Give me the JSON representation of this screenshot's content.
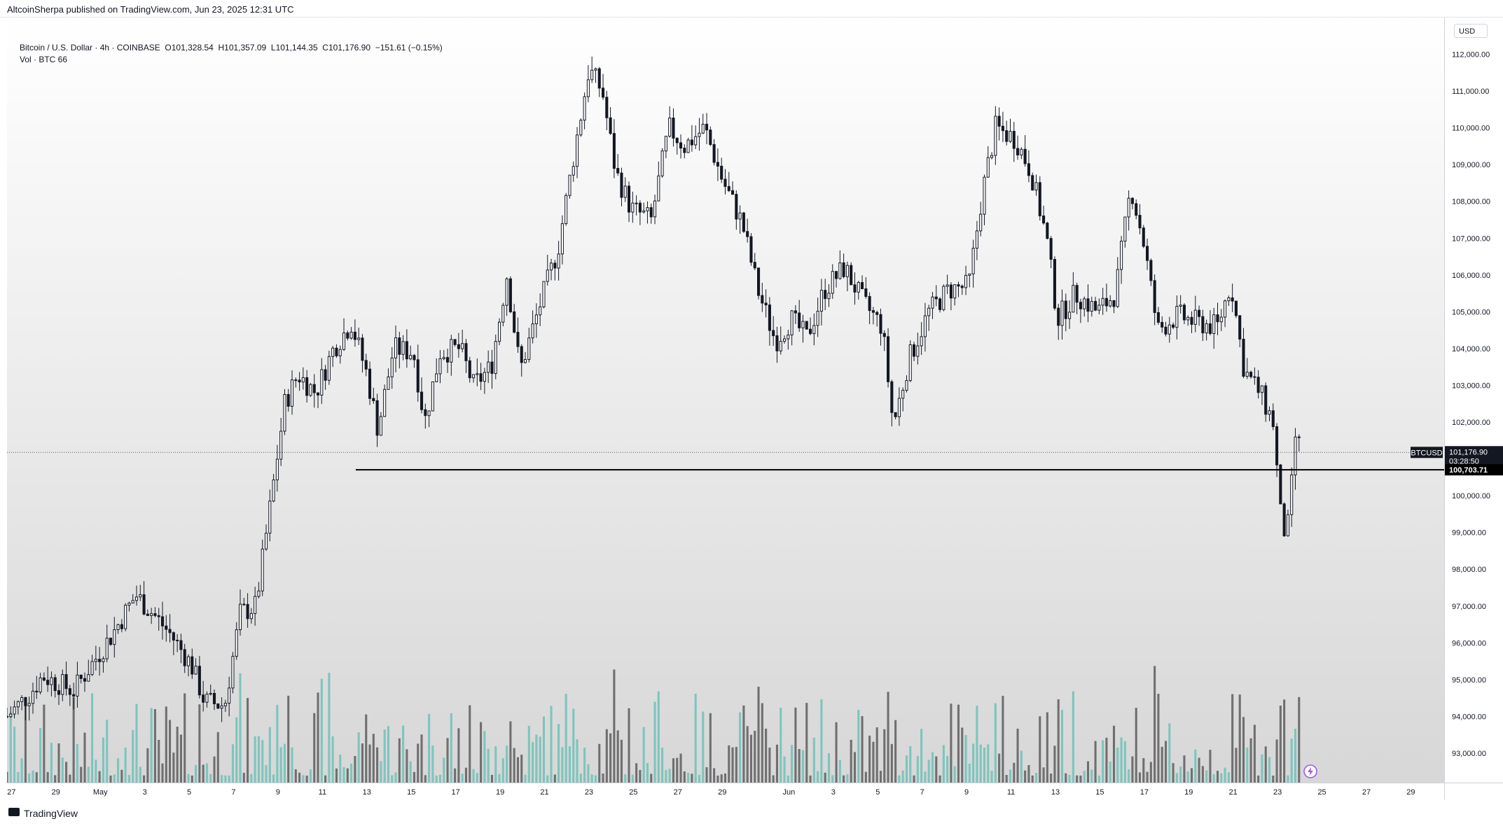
{
  "header": {
    "publisher_line": "AltcoinSherpa published on TradingView.com, Jun 23, 2025 12:31 UTC"
  },
  "legend": {
    "symbol_line": "Bitcoin / U.S. Dollar · 4h · COINBASE",
    "open": "O101,328.54",
    "high": "H101,357.09",
    "low": "L101,144.35",
    "close": "C101,176.90",
    "change": "−151.61 (−0.15%)",
    "volume_line": "Vol · BTC  66"
  },
  "price_scale": {
    "currency": "USD",
    "symbol_tag": "BTCUSD",
    "last_price": "101,176.90",
    "countdown": "03:28:50",
    "horizontal_line_value": "100,703.71"
  },
  "footer": {
    "brand": "TradingView"
  },
  "colors": {
    "candle_body": "#131722",
    "volume_up": "#7dc5bd",
    "volume_down": "#6f6f6f",
    "horizontal_line": "#000000",
    "background_top": "#ffffff",
    "background_bottom": "#d7d7d7"
  },
  "chart_data": {
    "type": "candlestick",
    "symbol": "BTCUSD",
    "exchange": "COINBASE",
    "timeframe": "4h",
    "y_ticks": [
      "93,000.00",
      "94,000.00",
      "95,000.00",
      "96,000.00",
      "97,000.00",
      "98,000.00",
      "99,000.00",
      "100,000.00",
      "101,000.00",
      "102,000.00",
      "103,000.00",
      "104,000.00",
      "105,000.00",
      "106,000.00",
      "107,000.00",
      "108,000.00",
      "109,000.00",
      "110,000.00",
      "111,000.00",
      "112,000.00"
    ],
    "y_tick_values": [
      93000,
      94000,
      95000,
      96000,
      97000,
      98000,
      99000,
      100000,
      101000,
      102000,
      103000,
      104000,
      105000,
      106000,
      107000,
      108000,
      109000,
      110000,
      111000,
      112000
    ],
    "ylim": [
      92200,
      113000
    ],
    "x_ticks": [
      "27",
      "29",
      "May",
      "3",
      "5",
      "7",
      "9",
      "11",
      "13",
      "15",
      "17",
      "19",
      "21",
      "23",
      "25",
      "27",
      "29",
      "Jun",
      "3",
      "5",
      "7",
      "9",
      "11",
      "13",
      "15",
      "17",
      "19",
      "21",
      "23",
      "25",
      "27",
      "29"
    ],
    "x_tick_days": [
      -4,
      -2,
      0,
      2,
      4,
      6,
      8,
      10,
      12,
      14,
      16,
      18,
      20,
      22,
      24,
      26,
      28,
      31,
      33,
      35,
      37,
      39,
      41,
      43,
      45,
      47,
      49,
      51,
      53,
      55,
      57,
      59
    ],
    "x_range_days": [
      -4.2,
      60.5
    ],
    "horizontal_line": {
      "price": 100703.71,
      "start_day": 11.5
    },
    "last_price": 101176.9,
    "series": [
      {
        "name": "BTCUSD",
        "anchors": [
          {
            "day": -4.2,
            "price": 94000
          },
          {
            "day": -3.2,
            "price": 94600
          },
          {
            "day": -2.6,
            "price": 95100
          },
          {
            "day": -1.2,
            "price": 94700
          },
          {
            "day": 0.5,
            "price": 96200
          },
          {
            "day": 1.6,
            "price": 97300
          },
          {
            "day": 2.5,
            "price": 96700
          },
          {
            "day": 3.2,
            "price": 96200
          },
          {
            "day": 4.1,
            "price": 95400
          },
          {
            "day": 4.7,
            "price": 94400
          },
          {
            "day": 5.6,
            "price": 94300
          },
          {
            "day": 6.3,
            "price": 96800
          },
          {
            "day": 7.0,
            "price": 97000
          },
          {
            "day": 7.6,
            "price": 99500
          },
          {
            "day": 8.3,
            "price": 102500
          },
          {
            "day": 8.9,
            "price": 103300
          },
          {
            "day": 9.7,
            "price": 102800
          },
          {
            "day": 10.5,
            "price": 104000
          },
          {
            "day": 11.3,
            "price": 104700
          },
          {
            "day": 12.0,
            "price": 103300
          },
          {
            "day": 12.5,
            "price": 101800
          },
          {
            "day": 13.2,
            "price": 104000
          },
          {
            "day": 14.1,
            "price": 103900
          },
          {
            "day": 14.6,
            "price": 102000
          },
          {
            "day": 15.3,
            "price": 103900
          },
          {
            "day": 16.2,
            "price": 104000
          },
          {
            "day": 16.8,
            "price": 103000
          },
          {
            "day": 17.6,
            "price": 103500
          },
          {
            "day": 18.3,
            "price": 106000
          },
          {
            "day": 18.9,
            "price": 103400
          },
          {
            "day": 19.8,
            "price": 105200
          },
          {
            "day": 20.6,
            "price": 106700
          },
          {
            "day": 21.3,
            "price": 109200
          },
          {
            "day": 22.0,
            "price": 111600
          },
          {
            "day": 22.6,
            "price": 111000
          },
          {
            "day": 23.2,
            "price": 108800
          },
          {
            "day": 23.9,
            "price": 107800
          },
          {
            "day": 24.8,
            "price": 107500
          },
          {
            "day": 25.6,
            "price": 110000
          },
          {
            "day": 26.3,
            "price": 109500
          },
          {
            "day": 27.2,
            "price": 110000
          },
          {
            "day": 28.0,
            "price": 108600
          },
          {
            "day": 28.9,
            "price": 107400
          },
          {
            "day": 29.6,
            "price": 105600
          },
          {
            "day": 30.4,
            "price": 104200
          },
          {
            "day": 31.1,
            "price": 104800
          },
          {
            "day": 31.8,
            "price": 104300
          },
          {
            "day": 32.6,
            "price": 105600
          },
          {
            "day": 33.5,
            "price": 106200
          },
          {
            "day": 34.4,
            "price": 105200
          },
          {
            "day": 35.2,
            "price": 104600
          },
          {
            "day": 35.7,
            "price": 101900
          },
          {
            "day": 36.4,
            "price": 103700
          },
          {
            "day": 37.3,
            "price": 105000
          },
          {
            "day": 38.2,
            "price": 105600
          },
          {
            "day": 39.1,
            "price": 105700
          },
          {
            "day": 39.7,
            "price": 108200
          },
          {
            "day": 40.3,
            "price": 110000
          },
          {
            "day": 41.2,
            "price": 109700
          },
          {
            "day": 41.9,
            "price": 108800
          },
          {
            "day": 42.6,
            "price": 107000
          },
          {
            "day": 43.1,
            "price": 104800
          },
          {
            "day": 43.9,
            "price": 105500
          },
          {
            "day": 44.9,
            "price": 105000
          },
          {
            "day": 45.7,
            "price": 105500
          },
          {
            "day": 46.4,
            "price": 108400
          },
          {
            "day": 47.0,
            "price": 106800
          },
          {
            "day": 47.6,
            "price": 104500
          },
          {
            "day": 48.5,
            "price": 104900
          },
          {
            "day": 49.4,
            "price": 104700
          },
          {
            "day": 50.3,
            "price": 104600
          },
          {
            "day": 50.9,
            "price": 105800
          },
          {
            "day": 51.5,
            "price": 103400
          },
          {
            "day": 52.2,
            "price": 102800
          },
          {
            "day": 52.8,
            "price": 102000
          },
          {
            "day": 53.2,
            "price": 99000
          },
          {
            "day": 53.5,
            "price": 99200
          },
          {
            "day": 53.8,
            "price": 101600
          },
          {
            "day": 54.1,
            "price": 101200
          }
        ]
      }
    ]
  }
}
